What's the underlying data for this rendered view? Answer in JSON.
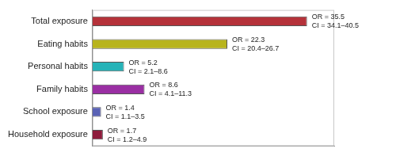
{
  "chart_data": {
    "type": "bar",
    "orientation": "horizontal",
    "categories": [
      "Total exposure",
      "Eating habits",
      "Personal habits",
      "Family habits",
      "School exposure",
      "Household exposure"
    ],
    "values": [
      35.5,
      22.3,
      5.2,
      8.6,
      1.4,
      1.7
    ],
    "value_labels": [
      "OR = 35.5",
      "OR = 22.3",
      "OR = 5.2",
      "OR = 8.6",
      "OR = 1.4",
      "OR = 1.7"
    ],
    "ci_labels": [
      "CI = 34.1–40.5",
      "CI = 20.4–26.7",
      "CI = 2.1–8.6",
      "CI = 4.1–11.3",
      "CI = 1.1–3.5",
      "CI = 1.2–4.9"
    ],
    "colors": [
      "#b5323a",
      "#b8b41e",
      "#26b3b8",
      "#9a2fa3",
      "#5a62b5",
      "#8e1c3c"
    ],
    "xlim": [
      0,
      40
    ],
    "data_labels": true,
    "tick_labels": "y",
    "grid": false
  }
}
